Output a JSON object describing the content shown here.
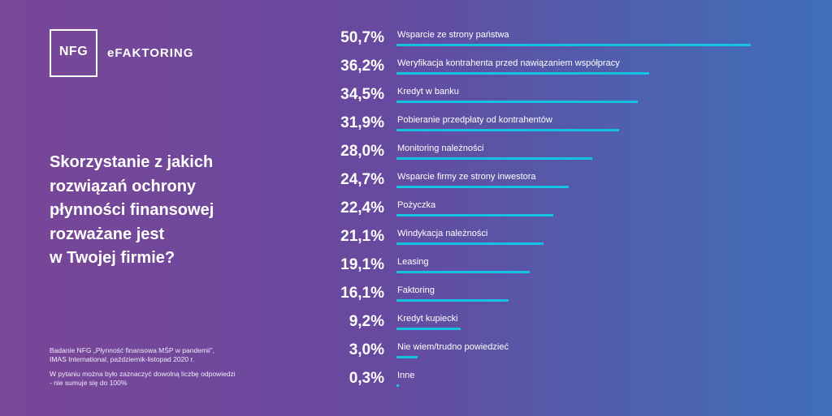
{
  "brand": {
    "logo_text": "NFG",
    "name": "eFAKTORING"
  },
  "question": {
    "lines": [
      "Skorzystanie z jakich",
      "rozwiązań ochrony",
      "płynności finansowej",
      "rozważane jest",
      "w Twojej firmie?"
    ]
  },
  "footnote": {
    "source_line1": "Badanie NFG „Płynność finansowa MŚP w pandemii”,",
    "source_line2": "IMAS International, październik-listopad 2020 r.",
    "note_line1": "W  pytaniu można było zaznaczyć dowolną liczbę odpowiedzi",
    "note_line2": "- nie sumuje się do 100%"
  },
  "colors": {
    "bar": "#16c2e4",
    "background_left": "#7a4697",
    "background_right": "#3f6fb8"
  },
  "chart_data": {
    "type": "bar",
    "orientation": "horizontal",
    "categories": [
      "Wsparcie ze strony państwa",
      "Weryfikacja kontrahenta przed nawiązaniem współpracy",
      "Kredyt w banku",
      "Pobieranie przedpłaty od kontrahentów",
      "Monitoring należności",
      "Wsparcie firmy ze strony inwestora",
      "Pożyczka",
      "Windykacja należności",
      "Leasing",
      "Faktoring",
      "Kredyt kupiecki",
      "Nie wiem/trudno powiedzieć",
      "Inne"
    ],
    "values": [
      50.7,
      36.2,
      34.5,
      31.9,
      28.0,
      24.7,
      22.4,
      21.1,
      19.1,
      16.1,
      9.2,
      3.0,
      0.3
    ],
    "labels": [
      "50,7%",
      "36,2%",
      "34,5%",
      "31,9%",
      "28,0%",
      "24,7%",
      "22,4%",
      "21,1%",
      "19,1%",
      "16,1%",
      "9,2%",
      "3,0%",
      "0,3%"
    ],
    "grid": false,
    "legend": "none"
  }
}
